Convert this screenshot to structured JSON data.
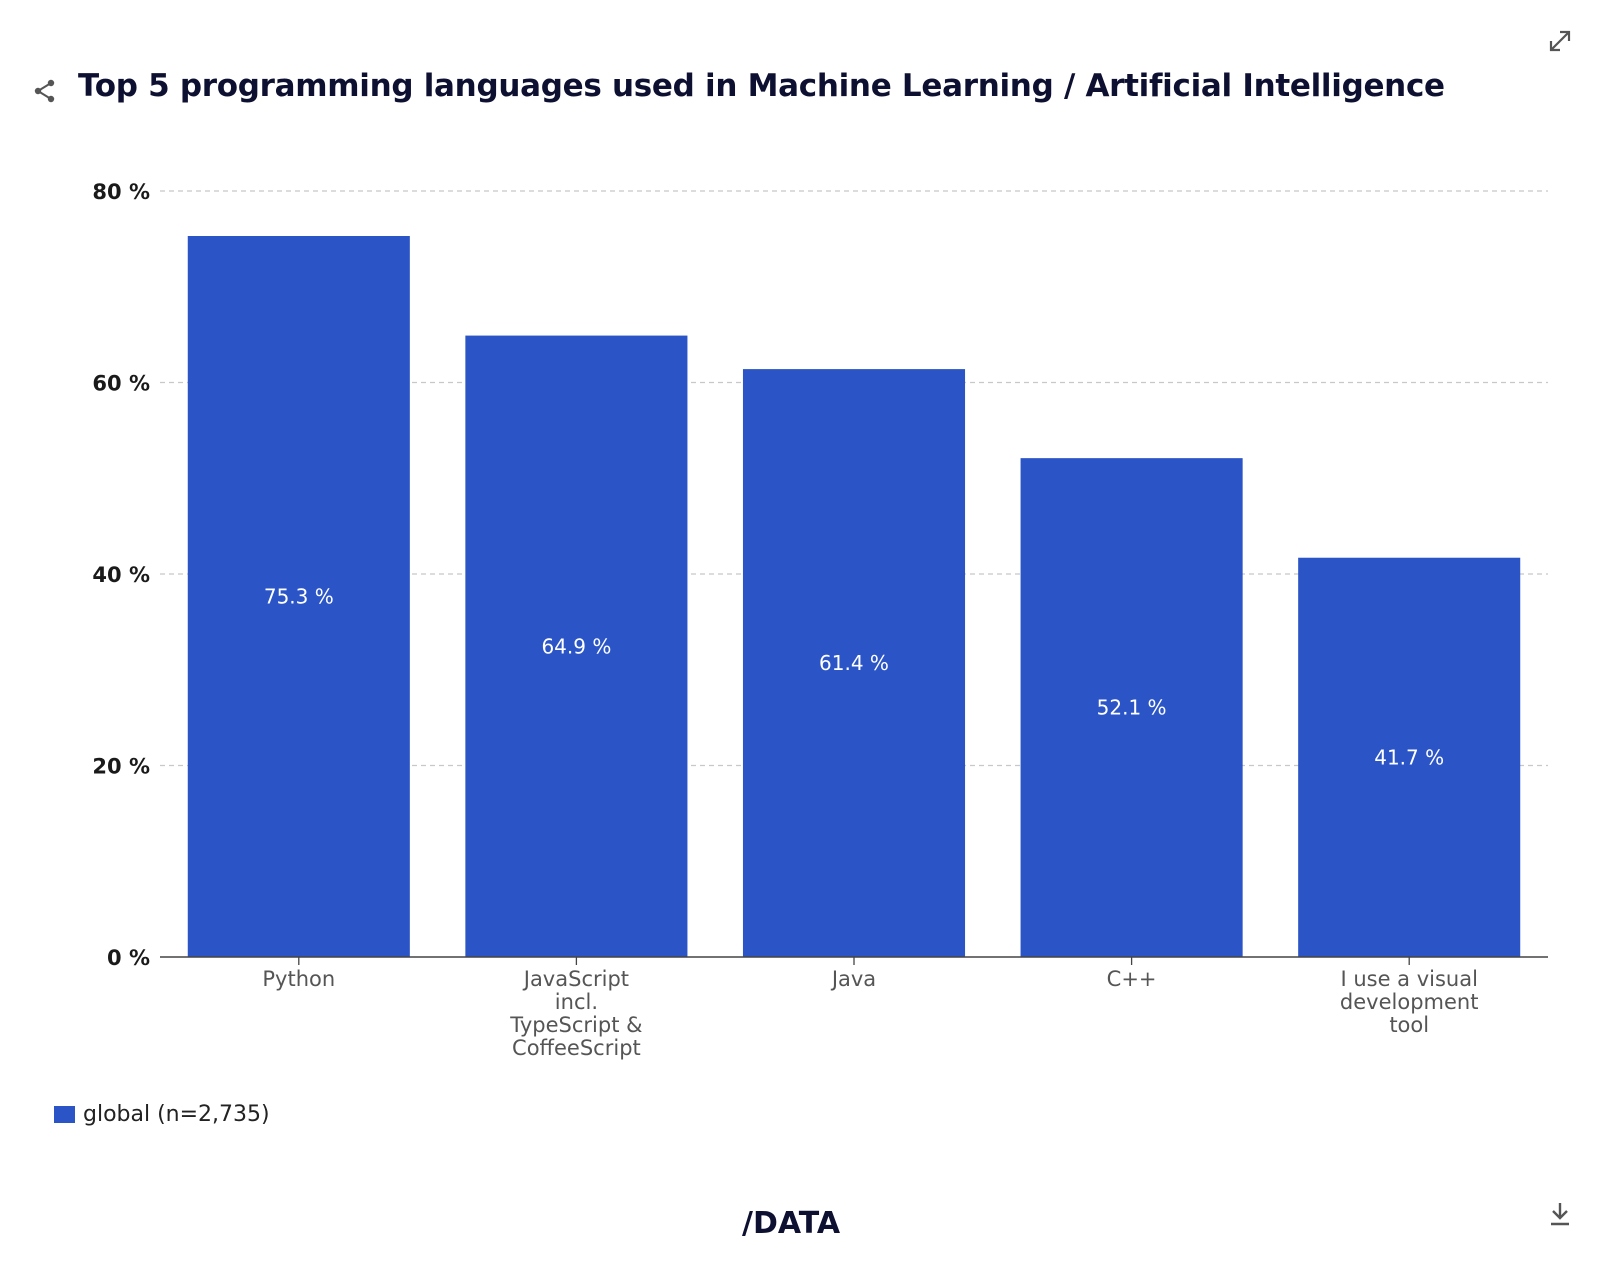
{
  "colors": {
    "bar": "#2b55c7",
    "title": "#0d1030",
    "grid": "#c8c8c8",
    "axis": "#444444",
    "icon": "#555555"
  },
  "icons": {
    "share": "share-icon",
    "expand": "expand-icon",
    "download": "download-icon",
    "brand": "idata-logo"
  },
  "brand": {
    "text": "/DATA"
  },
  "chart_data": {
    "type": "bar",
    "title": "Top 5 programming languages used in Machine Learning / Artificial Intelligence",
    "categories": [
      [
        "Python"
      ],
      [
        "JavaScript",
        "incl.",
        "TypeScript &",
        "CoffeeScript"
      ],
      [
        "Java"
      ],
      [
        "C++"
      ],
      [
        "I use a visual",
        "development",
        "tool"
      ]
    ],
    "series": [
      {
        "name": "global (n=2,735)",
        "values": [
          75.3,
          64.9,
          61.4,
          52.1,
          41.7
        ]
      }
    ],
    "data_labels": [
      "75.3 %",
      "64.9 %",
      "61.4 %",
      "52.1 %",
      "41.7 %"
    ],
    "yticks": [
      0,
      20,
      40,
      60,
      80
    ],
    "ytick_labels": [
      "0 %",
      "20 %",
      "40 %",
      "60 %",
      "80 %"
    ],
    "ylim": [
      0,
      80
    ],
    "xlabel": "",
    "ylabel": "",
    "grid": true,
    "legend": "bottom-left"
  }
}
